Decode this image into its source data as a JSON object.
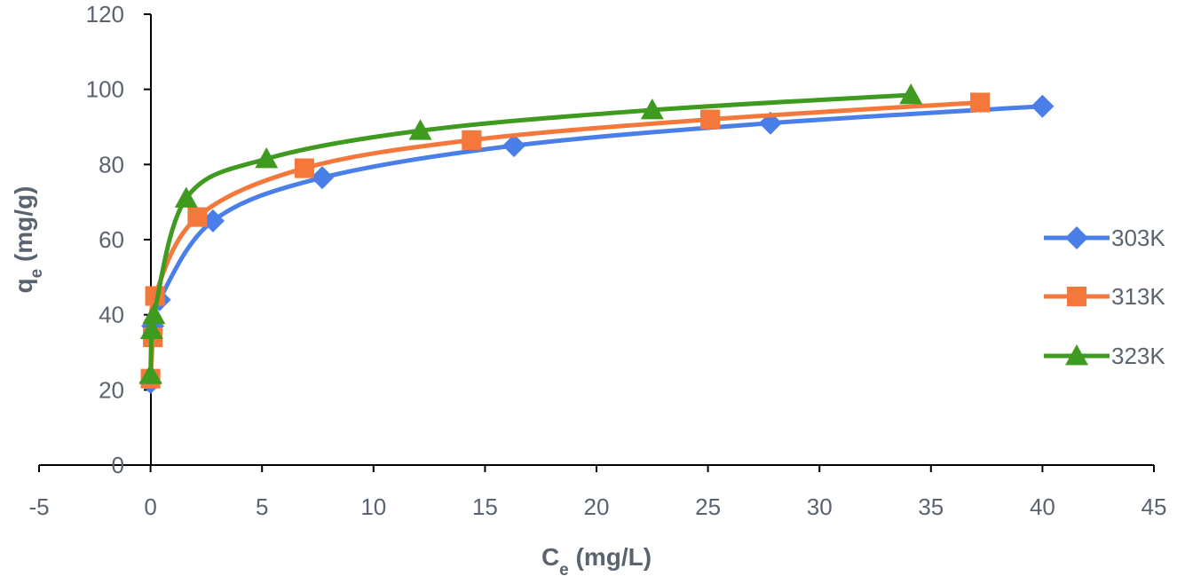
{
  "chart_data": {
    "type": "line",
    "title": "",
    "xlabel": {
      "main": "C",
      "sub": "e",
      "rest": " (mg/L)"
    },
    "ylabel": {
      "main": "q",
      "sub": "e",
      "rest": " (mg/g)"
    },
    "xlim": [
      -5,
      45
    ],
    "ylim": [
      0,
      120
    ],
    "xticks": [
      -5,
      0,
      5,
      10,
      15,
      20,
      25,
      30,
      35,
      40,
      45
    ],
    "xtick_labels": [
      "-5",
      "0",
      "5",
      "10",
      "15",
      "20",
      "25",
      "30",
      "35",
      "40",
      "45"
    ],
    "yticks": [
      0,
      20,
      40,
      60,
      80,
      100,
      120
    ],
    "ytick_labels": [
      "0",
      "20",
      "40",
      "60",
      "80",
      "100",
      "120"
    ],
    "grid": false,
    "legend_position": "right",
    "series": [
      {
        "name": "303K",
        "color": "#4a7ee8",
        "marker": "diamond",
        "x": [
          0.0,
          0.1,
          0.4,
          2.8,
          7.7,
          16.3,
          27.8,
          40.0
        ],
        "y": [
          22,
          37,
          44,
          65,
          76.5,
          85,
          91,
          95.5
        ]
      },
      {
        "name": "313K",
        "color": "#f4783b",
        "marker": "square",
        "x": [
          0.0,
          0.1,
          0.2,
          2.1,
          6.9,
          14.4,
          25.1,
          37.2
        ],
        "y": [
          23,
          34,
          45,
          66,
          79,
          86.5,
          92,
          96.5
        ]
      },
      {
        "name": "323K",
        "color": "#3f9a20",
        "marker": "triangle",
        "x": [
          0.0,
          0.05,
          0.15,
          1.6,
          5.2,
          12.1,
          22.5,
          34.1
        ],
        "y": [
          24,
          36,
          40,
          71,
          81.5,
          89,
          94.5,
          98.5
        ]
      }
    ]
  }
}
